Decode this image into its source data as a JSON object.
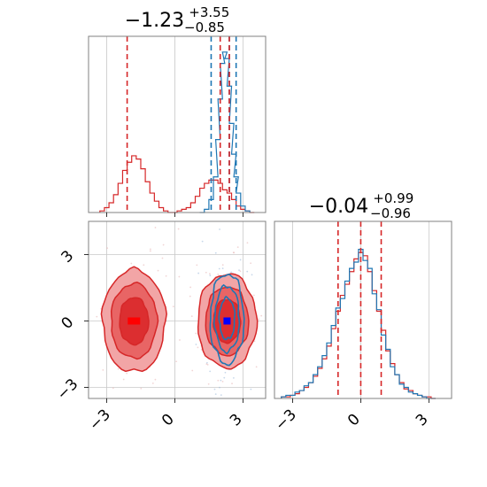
{
  "chart_data": {
    "type": "corner",
    "colors": {
      "red": "#d62728",
      "blue": "#1f77b4",
      "dark_blue": "#0000ff",
      "bright_red": "#ff0000"
    },
    "ticks": {
      "values": [
        -3,
        0,
        3
      ],
      "labels": [
        "−3",
        "0",
        "3"
      ]
    },
    "axis_range": [
      -3.8,
      4.0
    ],
    "grid": true,
    "panels": [
      {
        "id": "hist_param1",
        "type": "histogram",
        "title": {
          "main": "−1.23",
          "sup": "+3.55",
          "sub": "−0.85"
        },
        "xlim": [
          -3.8,
          4.0
        ],
        "quantiles_red": [
          -2.1,
          2.4
        ],
        "median_red": 2.0,
        "quantiles_blue": [
          1.6,
          2.7
        ],
        "median_blue": 2.4,
        "red_series": {
          "x": [
            -3.2,
            -3.0,
            -2.8,
            -2.6,
            -2.4,
            -2.2,
            -2.0,
            -1.8,
            -1.6,
            -1.4,
            -1.2,
            -1.0,
            -0.8,
            -0.6,
            -0.4,
            -0.2,
            0.0,
            0.2,
            0.4,
            0.6,
            0.8,
            1.0,
            1.2,
            1.4,
            1.6,
            1.8,
            2.0,
            2.2,
            2.4,
            2.6,
            2.8,
            3.0,
            3.2,
            3.4
          ],
          "y": [
            0.01,
            0.03,
            0.06,
            0.11,
            0.18,
            0.26,
            0.31,
            0.35,
            0.33,
            0.27,
            0.19,
            0.12,
            0.07,
            0.03,
            0.01,
            0.0,
            0.0,
            0.01,
            0.02,
            0.03,
            0.06,
            0.1,
            0.15,
            0.18,
            0.2,
            0.2,
            0.18,
            0.14,
            0.12,
            0.08,
            0.04,
            0.02,
            0.01,
            0.0
          ]
        },
        "blue_series": {
          "x": [
            1.2,
            1.4,
            1.6,
            1.8,
            1.9,
            2.0,
            2.1,
            2.2,
            2.3,
            2.4,
            2.5,
            2.6,
            2.7,
            2.8,
            3.0,
            3.2
          ],
          "y": [
            0.0,
            0.02,
            0.08,
            0.22,
            0.45,
            0.7,
            0.92,
            0.99,
            0.95,
            0.78,
            0.55,
            0.36,
            0.22,
            0.12,
            0.04,
            0.01
          ]
        }
      },
      {
        "id": "hist_param2",
        "type": "histogram",
        "title": {
          "main": "−0.04",
          "sup": "+0.99",
          "sub": "−0.96"
        },
        "xlim": [
          -3.8,
          4.0
        ],
        "quantiles_red": [
          -1.0,
          0.9
        ],
        "median_red": 0.0,
        "red_series": {
          "x": [
            -3.4,
            -3.2,
            -3.0,
            -2.8,
            -2.6,
            -2.4,
            -2.2,
            -2.0,
            -1.8,
            -1.6,
            -1.4,
            -1.2,
            -1.0,
            -0.8,
            -0.6,
            -0.4,
            -0.2,
            0.0,
            0.2,
            0.4,
            0.6,
            0.8,
            1.0,
            1.2,
            1.4,
            1.6,
            1.8,
            2.0,
            2.2,
            2.4,
            2.6,
            2.8,
            3.0,
            3.2
          ],
          "y": [
            0.01,
            0.01,
            0.02,
            0.03,
            0.05,
            0.07,
            0.1,
            0.14,
            0.19,
            0.25,
            0.33,
            0.44,
            0.55,
            0.65,
            0.72,
            0.8,
            0.88,
            0.92,
            0.9,
            0.8,
            0.68,
            0.55,
            0.43,
            0.3,
            0.22,
            0.15,
            0.1,
            0.06,
            0.05,
            0.03,
            0.02,
            0.01,
            0.01,
            0.0
          ]
        },
        "blue_series": {
          "x": [
            -3.4,
            -3.2,
            -3.0,
            -2.8,
            -2.6,
            -2.4,
            -2.2,
            -2.0,
            -1.8,
            -1.6,
            -1.4,
            -1.2,
            -1.0,
            -0.8,
            -0.6,
            -0.4,
            -0.2,
            0.0,
            0.2,
            0.4,
            0.6,
            0.8,
            1.0,
            1.2,
            1.4,
            1.6,
            1.8,
            2.0,
            2.2,
            2.4,
            2.6,
            2.8,
            3.0,
            3.2
          ],
          "y": [
            0.01,
            0.02,
            0.02,
            0.04,
            0.05,
            0.08,
            0.1,
            0.15,
            0.2,
            0.27,
            0.35,
            0.46,
            0.57,
            0.63,
            0.74,
            0.82,
            0.86,
            0.94,
            0.87,
            0.82,
            0.66,
            0.56,
            0.4,
            0.31,
            0.2,
            0.15,
            0.09,
            0.07,
            0.04,
            0.03,
            0.02,
            0.01,
            0.0,
            0.0
          ]
        }
      },
      {
        "id": "joint_param1_param2",
        "type": "contour",
        "xlim": [
          -3.8,
          4.0
        ],
        "ylim": [
          -3.5,
          4.5
        ],
        "red_clusters": [
          {
            "cx": -1.8,
            "cy": 0.0,
            "sx": 0.75,
            "sy": 1.25
          },
          {
            "cx": 2.3,
            "cy": 0.0,
            "sx": 0.7,
            "sy": 1.15
          }
        ],
        "blue_cluster": {
          "cx": 2.3,
          "cy": 0.1,
          "sx": 0.4,
          "sy": 1.1
        },
        "markers": [
          {
            "x": -1.8,
            "y": 0.0,
            "color": "#ff0000"
          },
          {
            "x": 2.3,
            "y": 0.0,
            "color": "#0000ff"
          }
        ]
      }
    ]
  }
}
